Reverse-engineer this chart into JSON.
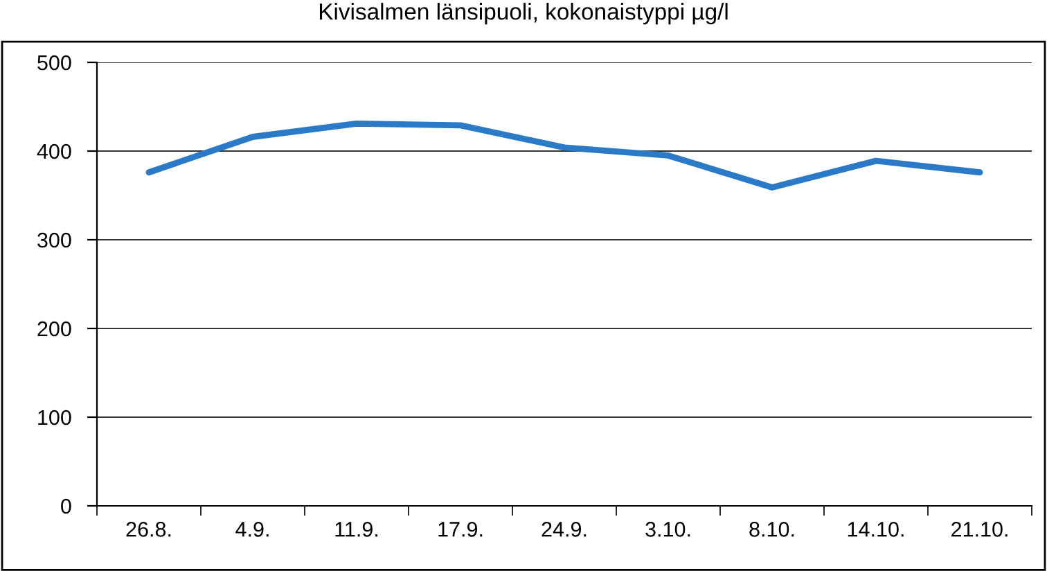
{
  "chart_data": {
    "type": "line",
    "title": "Kivisalmen länsipuoli, kokonaistyppi µg/l",
    "categories": [
      "26.8.",
      "4.9.",
      "11.9.",
      "17.9.",
      "24.9.",
      "3.10.",
      "8.10.",
      "14.10.",
      "21.10."
    ],
    "series": [
      {
        "color": "#2a7ac8",
        "values": [
          376,
          416,
          431,
          429,
          404,
          395,
          359,
          389,
          376
        ]
      }
    ],
    "ylim": [
      0,
      500
    ],
    "yticks": [
      0,
      100,
      200,
      300,
      400,
      500
    ],
    "grid": "y",
    "marker": "none",
    "line_style": "solid"
  }
}
